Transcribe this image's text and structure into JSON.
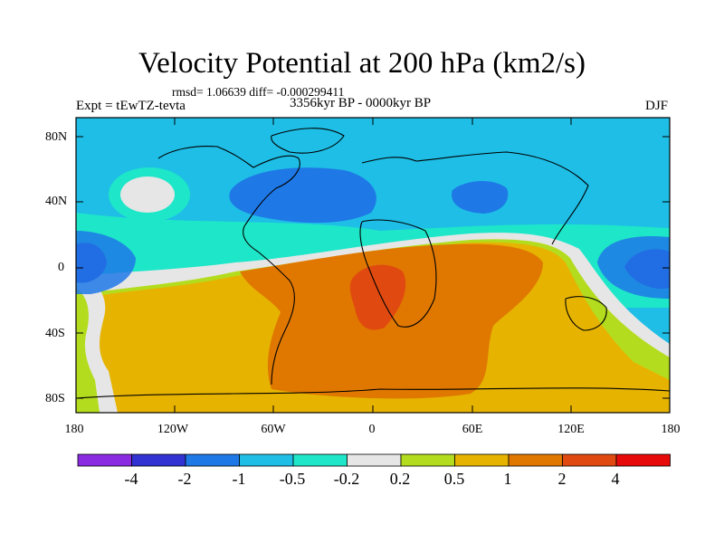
{
  "title": "Velocity Potential at 200 hPa (km2/s)",
  "stats": "rmsd= 1.06639 diff= -0.000299411",
  "experiment": "Expt = tEwTZ-tevta",
  "period": "3356kyr BP - 0000kyr BP",
  "season": "DJF",
  "lat_labels": [
    "80N",
    "40N",
    "0",
    "40S",
    "80S"
  ],
  "lon_labels": [
    "180",
    "120W",
    "60W",
    "0",
    "60E",
    "120E",
    "180"
  ],
  "colorbar": {
    "colors": [
      "#8a2be2",
      "#3232d2",
      "#1e78e6",
      "#1ebee6",
      "#1ee6c8",
      "#e6e6e6",
      "#b4dc1e",
      "#e6b400",
      "#e07800",
      "#e04a10",
      "#e60a0a"
    ],
    "labels": [
      "-4",
      "-2",
      "-1",
      "-0.5",
      "-0.2",
      "0.2",
      "0.5",
      "1",
      "2",
      "4"
    ]
  }
}
